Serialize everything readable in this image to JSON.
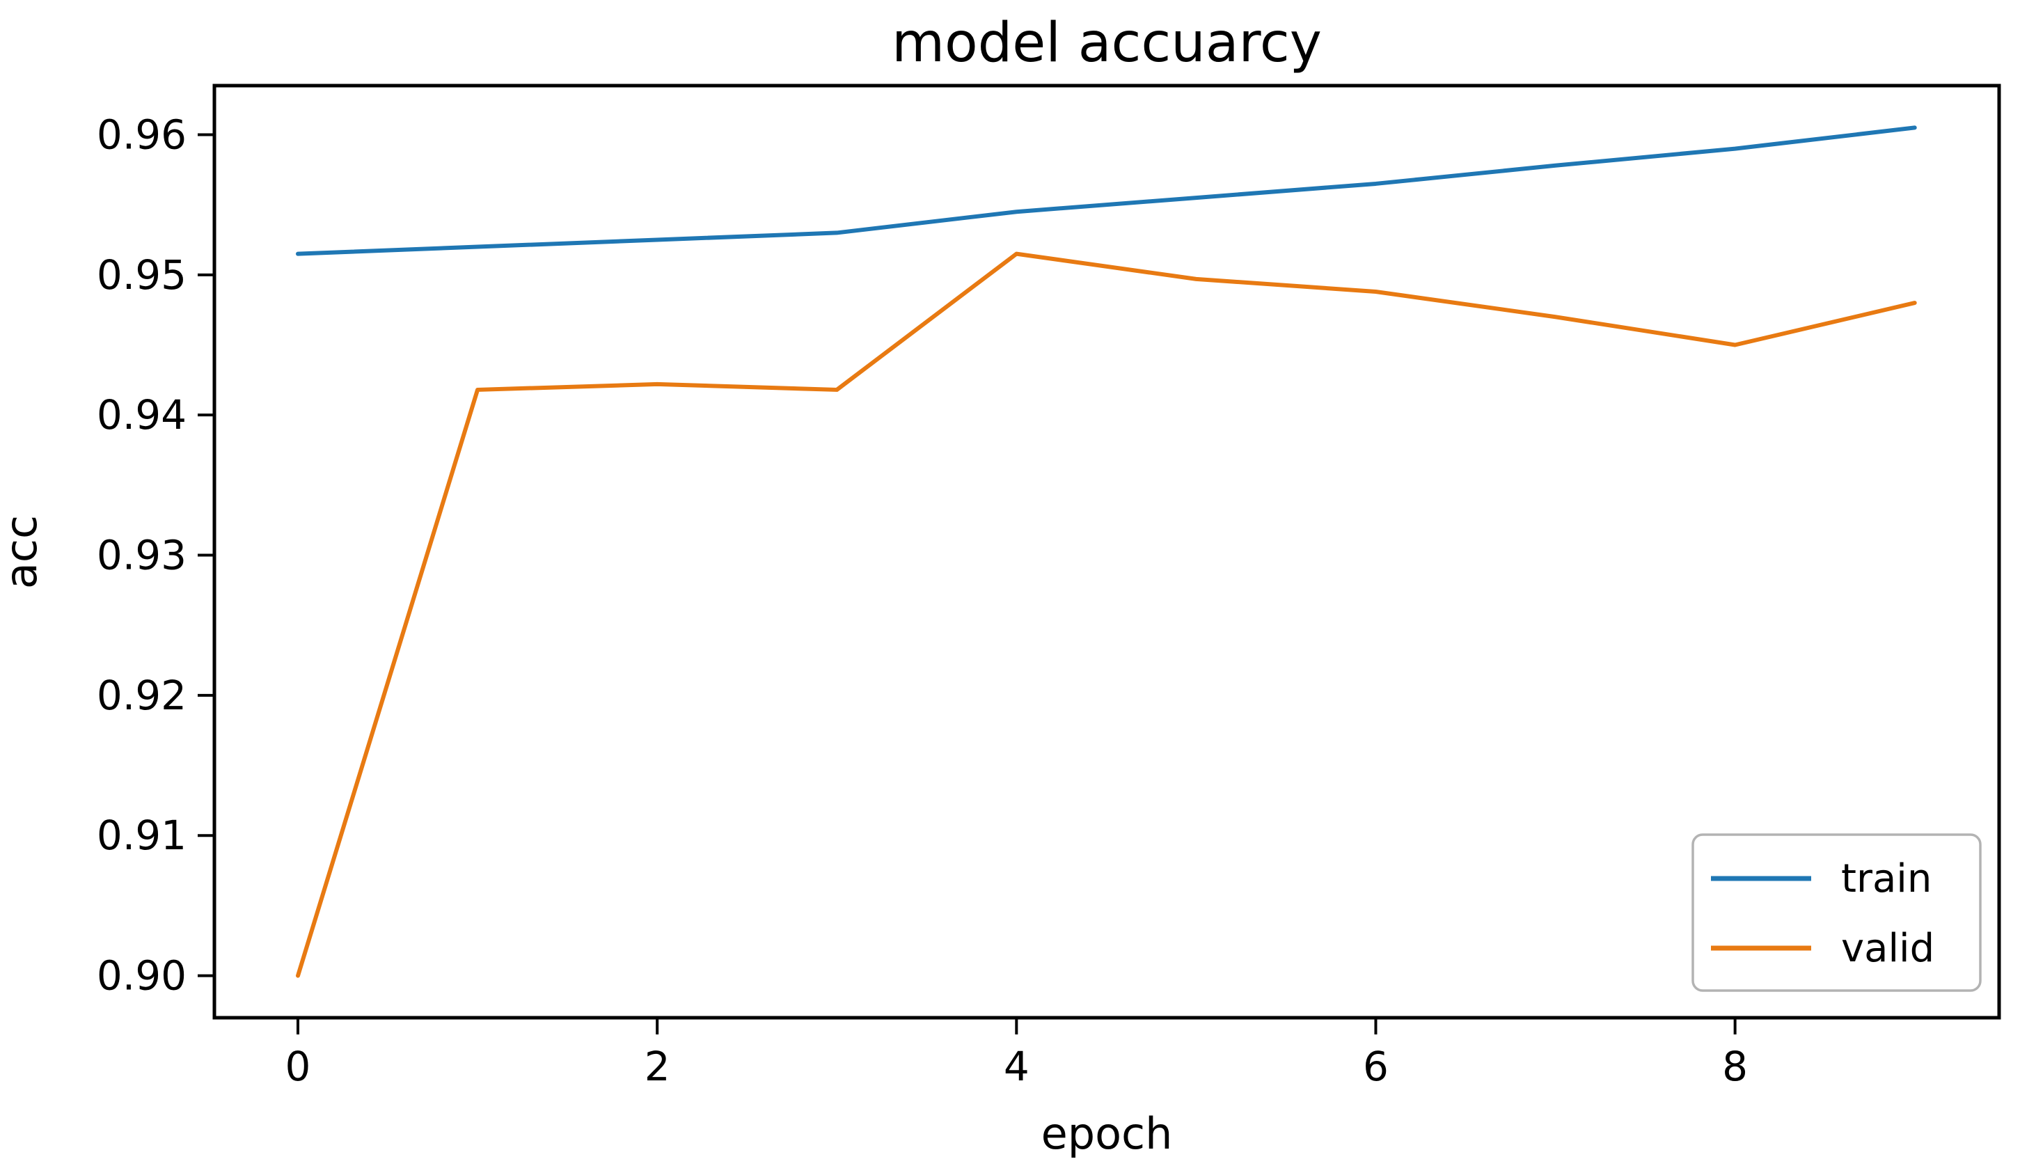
{
  "figure": {
    "background": "#ffffff",
    "spine_color": "#000000",
    "tick_color": "#000000",
    "text_color": "#000000"
  },
  "chart_data": {
    "type": "line",
    "title": "model accuarcy",
    "xlabel": "epoch",
    "ylabel": "acc",
    "x": [
      0,
      1,
      2,
      3,
      4,
      5,
      6,
      7,
      8,
      9
    ],
    "series": [
      {
        "name": "train",
        "color": "#1f77b4",
        "values": [
          0.9515,
          0.952,
          0.9525,
          0.953,
          0.9545,
          0.9555,
          0.9565,
          0.9578,
          0.959,
          0.9605
        ]
      },
      {
        "name": "valid",
        "color": "#e87a12",
        "values": [
          0.9,
          0.9418,
          0.9422,
          0.9418,
          0.9515,
          0.9497,
          0.9488,
          0.947,
          0.945,
          0.948
        ]
      }
    ],
    "xlim": [
      -0.465,
      9.47
    ],
    "ylim": [
      0.897,
      0.9635
    ],
    "xticks": {
      "values": [
        0,
        2,
        4,
        6,
        8
      ],
      "labels": [
        "0",
        "2",
        "4",
        "6",
        "8"
      ]
    },
    "yticks": {
      "values": [
        0.9,
        0.91,
        0.92,
        0.93,
        0.94,
        0.95,
        0.96
      ],
      "labels": [
        "0.90",
        "0.91",
        "0.92",
        "0.93",
        "0.94",
        "0.95",
        "0.96"
      ]
    },
    "grid": false,
    "legend": {
      "position": "lower right",
      "entries": [
        {
          "label": "train",
          "color": "#1f77b4"
        },
        {
          "label": "valid",
          "color": "#e87a12"
        }
      ]
    }
  }
}
